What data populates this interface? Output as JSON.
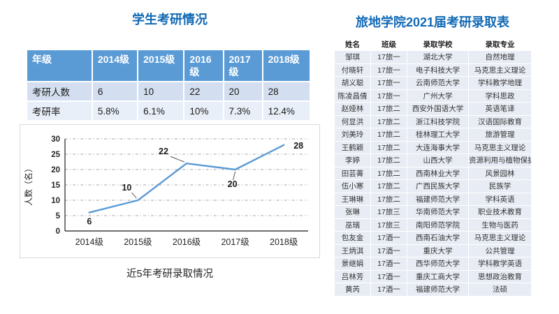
{
  "colors": {
    "accent_blue": "#1169B5",
    "table_header_blue": "#5B9BD5",
    "band_light_blue": "#D3DFF0",
    "band_lighter_blue": "#E9EFF8",
    "right_row_bg": "#E8ECF4",
    "chart_line": "#5B9BD5",
    "grid_gray": "#A6A6A6",
    "axis_gray": "#404040"
  },
  "left_panel": {
    "title": "学生考研情况",
    "summary_table": {
      "header": [
        "年级",
        "2014级",
        "2015级",
        "2016级",
        "2017级",
        "2018级"
      ],
      "rows": [
        {
          "label": "考研人数",
          "values": [
            "6",
            "10",
            "22",
            "20",
            "28"
          ]
        },
        {
          "label": "考研率",
          "values": [
            "5.8%",
            "6.1%",
            "10%",
            "7.3%",
            "12.4%"
          ]
        }
      ]
    },
    "chart_caption": "近5年考研录取情况"
  },
  "chart_data": {
    "type": "line",
    "title": "",
    "categories": [
      "2014级",
      "2015级",
      "2016级",
      "2017级",
      "2018级"
    ],
    "values": [
      6,
      10,
      22,
      20,
      28
    ],
    "data_labels": [
      "6",
      "10",
      "22",
      "20",
      "28"
    ],
    "xlabel": "",
    "ylabel": "人数（名）",
    "ylim": [
      0,
      30
    ],
    "ytick_step": 5,
    "grid": "horizontal dash-dot",
    "legend": "none",
    "line_color": "#5B9BD5"
  },
  "right_panel": {
    "title": "旅地学院2021届考研录取表",
    "admission_table": {
      "header": [
        "姓名",
        "班级",
        "录取学校",
        "录取专业"
      ],
      "rows": [
        [
          "邹琪",
          "17旅一",
          "湖北大学",
          "自然地理"
        ],
        [
          "付晓轩",
          "17旅一",
          "电子科技大学",
          "马克思主义理论"
        ],
        [
          "胡义聪",
          "17旅一",
          "云南师范大学",
          "学科教学地理"
        ],
        [
          "陈凌昌倩",
          "17旅一",
          "广州大学",
          "学科思政"
        ],
        [
          "赵娅林",
          "17旅二",
          "西安外国语大学",
          "英语笔译"
        ],
        [
          "何显洪",
          "17旅二",
          "浙江科技学院",
          "汉语国际教育"
        ],
        [
          "刘美玲",
          "17旅二",
          "桂林理工大学",
          "旅游管理"
        ],
        [
          "王鹤颖",
          "17旅二",
          "大连海事大学",
          "马克思主义理论"
        ],
        [
          "李婷",
          "17旅二",
          "山西大学",
          "资源利用与植物保护"
        ],
        [
          "田芸菁",
          "17旅二",
          "西南林业大学",
          "风景园林"
        ],
        [
          "伍小寒",
          "17旅二",
          "广西民族大学",
          "民族学"
        ],
        [
          "王琳琳",
          "17旅二",
          "福建师范大学",
          "学科英语"
        ],
        [
          "张琳",
          "17旅三",
          "华南师范大学",
          "职业技术教育"
        ],
        [
          "巫瑞",
          "17旅三",
          "南阳师范学院",
          "生物与医药"
        ],
        [
          "包友金",
          "17酒一",
          "西南石油大学",
          "马克思主义理论"
        ],
        [
          "王炳淇",
          "17酒一",
          "重庆大学",
          "公共管理"
        ],
        [
          "景继娟",
          "17酒一",
          "西华师范大学",
          "学科教学英语"
        ],
        [
          "吕林芳",
          "17酒一",
          "重庆工商大学",
          "思想政治教育"
        ],
        [
          "黄芮",
          "17酒一",
          "福建师范大学",
          "法硕"
        ]
      ]
    }
  }
}
